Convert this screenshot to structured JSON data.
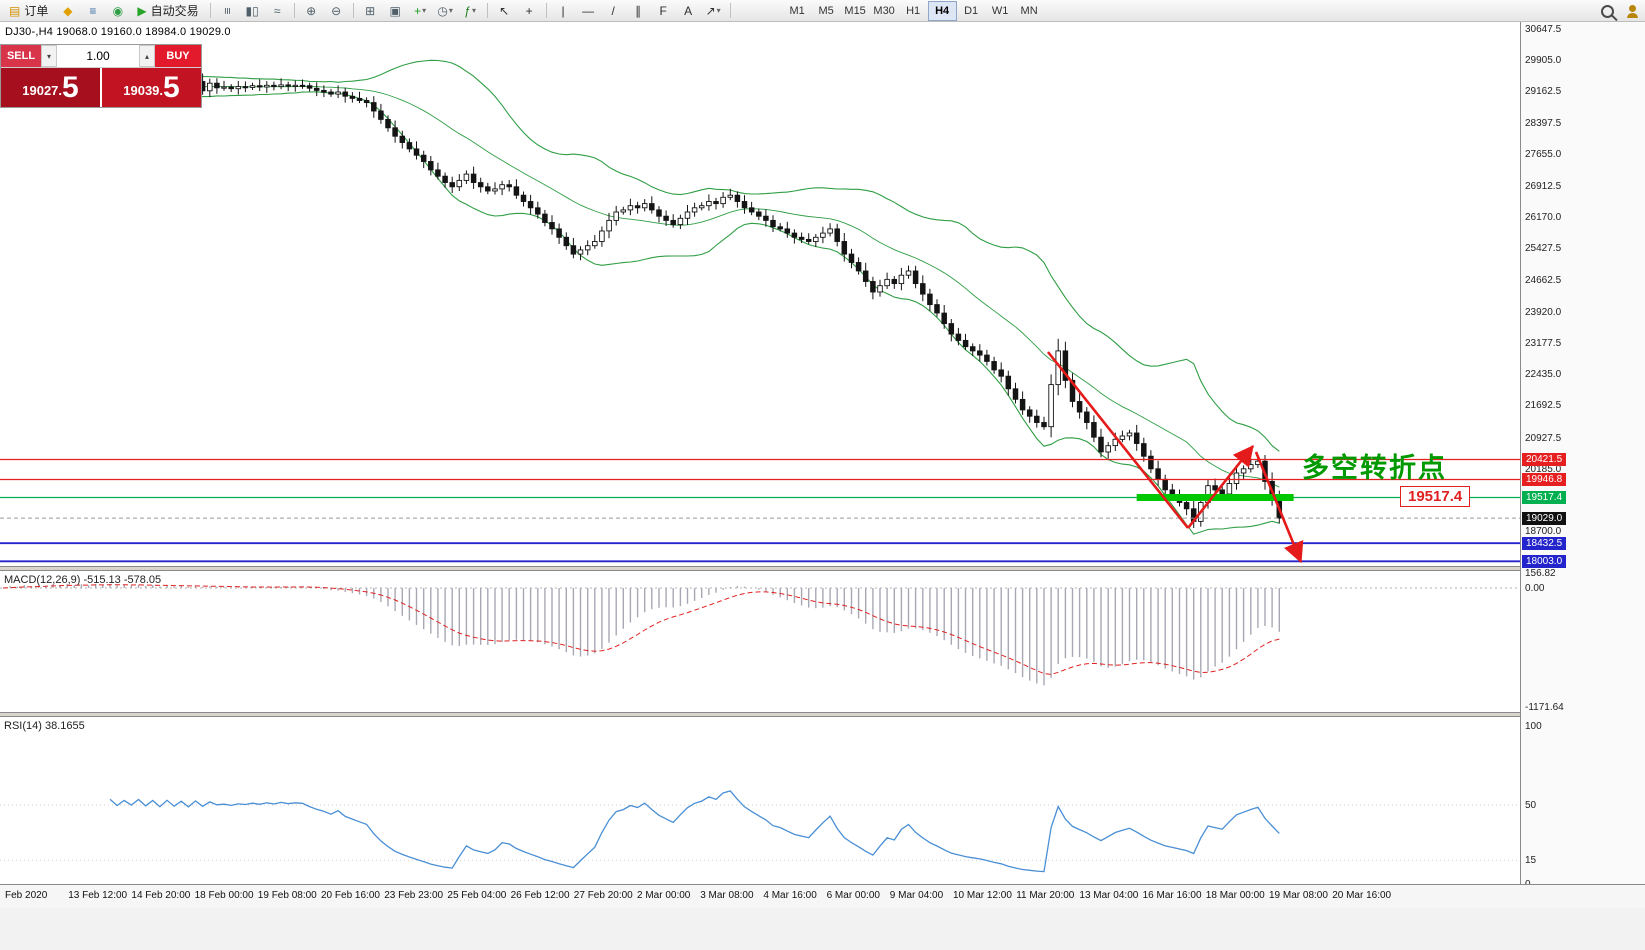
{
  "toolbar": {
    "items": [
      {
        "t": "btn",
        "name": "new-order-button",
        "glyph": "▤",
        "gc": "#d49000",
        "label": "订单"
      },
      {
        "t": "icon",
        "name": "metaeditor-icon",
        "glyph": "◆",
        "gc": "#e0a000"
      },
      {
        "t": "icon",
        "name": "market-depth-icon",
        "glyph": "≡",
        "gc": "#3a6ea5"
      },
      {
        "t": "icon",
        "name": "mql5-community-icon",
        "glyph": "◉",
        "gc": "#2e9e44"
      },
      {
        "t": "btn",
        "name": "autotrading-button",
        "glyph": "▶",
        "gc": "#28a428",
        "label": "自动交易"
      },
      {
        "t": "sep"
      },
      {
        "t": "icon",
        "name": "bar-chart-icon",
        "glyph": "≡",
        "gc": "#50606a",
        "rot": 90
      },
      {
        "t": "icon",
        "name": "candlestick-chart-icon",
        "glyph": "▮▯",
        "gc": "#50606a"
      },
      {
        "t": "icon",
        "name": "line-chart-icon",
        "glyph": "≈",
        "gc": "#50606a"
      },
      {
        "t": "sep"
      },
      {
        "t": "icon",
        "name": "zoom-in-icon",
        "glyph": "⊕",
        "gc": "#50606a"
      },
      {
        "t": "icon",
        "name": "zoom-out-icon",
        "glyph": "⊖",
        "gc": "#50606a"
      },
      {
        "t": "sep"
      },
      {
        "t": "icon",
        "name": "tile-windows-icon",
        "glyph": "⊞",
        "gc": "#50606a"
      },
      {
        "t": "icon",
        "name": "cascade-windows-icon",
        "glyph": "▣",
        "gc": "#50606a"
      },
      {
        "t": "icondrop",
        "name": "new-chart-button",
        "glyph": "+",
        "gc": "#1f9d1f"
      },
      {
        "t": "icondrop",
        "name": "profiles-button",
        "glyph": "◷",
        "gc": "#50606a"
      },
      {
        "t": "icondrop",
        "name": "indicators-button",
        "glyph": "ƒ",
        "gc": "#1f7d1f"
      },
      {
        "t": "sep"
      },
      {
        "t": "icon",
        "name": "cursor-icon",
        "glyph": "↖",
        "gc": "#303030"
      },
      {
        "t": "icon",
        "name": "crosshair-icon",
        "glyph": "+",
        "gc": "#303030"
      },
      {
        "t": "sep"
      },
      {
        "t": "icon",
        "name": "vertical-line-icon",
        "glyph": "|",
        "gc": "#303030"
      },
      {
        "t": "icon",
        "name": "horizontal-line-icon",
        "glyph": "—",
        "gc": "#303030"
      },
      {
        "t": "icon",
        "name": "trendline-icon",
        "glyph": "/",
        "gc": "#303030"
      },
      {
        "t": "icon",
        "name": "equidistant-channel-icon",
        "glyph": "∥",
        "gc": "#303030"
      },
      {
        "t": "icon",
        "name": "fibonacci-icon",
        "glyph": "F",
        "gc": "#303030"
      },
      {
        "t": "icon",
        "name": "text-tool-icon",
        "glyph": "A",
        "gc": "#303030"
      },
      {
        "t": "icondrop",
        "name": "arrows-tool-icon",
        "glyph": "↗",
        "gc": "#303030"
      },
      {
        "t": "sep"
      },
      {
        "t": "gap"
      },
      {
        "t": "tf",
        "label": "M1"
      },
      {
        "t": "tf",
        "label": "M5"
      },
      {
        "t": "tf",
        "label": "M15"
      },
      {
        "t": "tf",
        "label": "M30"
      },
      {
        "t": "tf",
        "label": "H1"
      },
      {
        "t": "tf",
        "label": "H4",
        "active": true
      },
      {
        "t": "tf",
        "label": "D1"
      },
      {
        "t": "tf",
        "label": "W1"
      },
      {
        "t": "tf",
        "label": "MN"
      }
    ],
    "right_icons": [
      {
        "name": "search-icon",
        "cls": "ic-search"
      },
      {
        "name": "community-icon",
        "cls": "ic-community"
      }
    ]
  },
  "trade_panel": {
    "sell_label": "SELL",
    "buy_label": "BUY",
    "volume": "1.00",
    "spinner_down": "▾",
    "spinner_up": "▴",
    "sell_price_small": "19027.",
    "sell_price_big": "5",
    "buy_price_small": "19039.",
    "buy_price_big": "5"
  },
  "chart": {
    "symbol_info": "DJ30-,H4  19068.0 19160.0 18984.0 19029.0",
    "annotation_cn": "多空转折点",
    "level_label": "19517.4"
  },
  "price_axis": {
    "scale": [
      "30647.5",
      "29905.0",
      "29162.5",
      "28397.5",
      "27655.0",
      "26912.5",
      "26170.0",
      "25427.5",
      "24662.5",
      "23920.0",
      "23177.5",
      "22435.0",
      "21692.5",
      "20927.5",
      "20185.0",
      "18700.0"
    ],
    "tags": [
      {
        "value": "20421.5",
        "color": "#e62020"
      },
      {
        "value": "19946.8",
        "color": "#e62020"
      },
      {
        "value": "19517.4",
        "color": "#00b050"
      },
      {
        "value": "19029.0",
        "color": "#111111"
      },
      {
        "value": "18432.5",
        "color": "#2424cc"
      },
      {
        "value": "18003.0",
        "color": "#2424cc"
      }
    ]
  },
  "chart_data": {
    "type": "candlestick",
    "symbol": "DJ30-",
    "timeframe": "H4",
    "ohlc": {
      "open": 19068.0,
      "high": 19160.0,
      "low": 18984.0,
      "close": 19029.0
    },
    "y_axis": {
      "min": 18003.0,
      "max": 30647.5
    },
    "current_price": 19029.0,
    "closes": [
      29150,
      29400,
      29120,
      29380,
      29100,
      29350,
      29150,
      29420,
      29180,
      29400,
      29130,
      29380,
      29160,
      29430,
      29200,
      29400,
      29150,
      29370,
      29180,
      29420,
      29160,
      29390,
      29140,
      29410,
      29170,
      29380,
      29150,
      29400,
      29180,
      29360,
      29250,
      29270,
      29230,
      29280,
      29260,
      29300,
      29270,
      29310,
      29280,
      29320,
      29290,
      29310,
      29300,
      29240,
      29190,
      29150,
      29100,
      29150,
      29050,
      29000,
      28950,
      28900,
      28700,
      28500,
      28300,
      28100,
      27950,
      27800,
      27650,
      27500,
      27300,
      27150,
      27000,
      26900,
      27050,
      27200,
      27000,
      26900,
      26800,
      26850,
      26950,
      26900,
      26700,
      26550,
      26400,
      26250,
      26050,
      25900,
      25700,
      25500,
      25300,
      25400,
      25500,
      25600,
      25850,
      26100,
      26300,
      26350,
      26450,
      26400,
      26500,
      26350,
      26200,
      26100,
      26000,
      26150,
      26300,
      26400,
      26450,
      26550,
      26500,
      26650,
      26700,
      26550,
      26400,
      26300,
      26200,
      26100,
      25950,
      25900,
      25800,
      25700,
      25650,
      25600,
      25700,
      25800,
      25900,
      25600,
      25300,
      25100,
      24900,
      24650,
      24400,
      24550,
      24700,
      24600,
      24800,
      24900,
      24600,
      24350,
      24100,
      23900,
      23650,
      23400,
      23250,
      23100,
      23000,
      22900,
      22750,
      22550,
      22400,
      22100,
      21850,
      21600,
      21450,
      21300,
      21200,
      22200,
      23000,
      22300,
      21800,
      21550,
      21300,
      20950,
      20600,
      20750,
      20900,
      20980,
      21050,
      20800,
      20500,
      20200,
      19950,
      19700,
      19550,
      19400,
      19250,
      18950,
      19400,
      19800,
      19700,
      19600,
      19850,
      20100,
      20200,
      20300,
      20380,
      19900,
      19500,
      19029
    ],
    "levels": [
      {
        "price": 20421.5,
        "color": "red"
      },
      {
        "price": 19946.8,
        "color": "red"
      },
      {
        "price": 19517.4,
        "color": "green"
      },
      {
        "price": 18432.5,
        "color": "blue"
      },
      {
        "price": 18003.0,
        "color": "blue"
      }
    ],
    "highlight_zone": {
      "price": 19517.4,
      "from_index": 159,
      "to_index": 181
    },
    "arrows": [
      {
        "points": [
          [
            1048,
            352
          ],
          [
            1188,
            528
          ]
        ],
        "head": false
      },
      {
        "points": [
          [
            1188,
            528
          ],
          [
            1253,
            446
          ]
        ],
        "head": true
      },
      {
        "points": [
          [
            1256,
            452
          ],
          [
            1301,
            562
          ]
        ],
        "head": true
      }
    ],
    "indicators": {
      "macd": {
        "label": "MACD(12,26,9) -515.13 -578.05",
        "params": [
          12,
          26,
          9
        ],
        "current": -515.13,
        "signal_current": -578.05,
        "axis": [
          "156.82",
          "0.00",
          "-1171.64"
        ]
      },
      "rsi": {
        "label": "RSI(14) 38.1655",
        "period": 14,
        "current": 38.1655,
        "axis": [
          "100",
          "50",
          "15",
          "0"
        ]
      }
    },
    "time_labels": [
      "Feb 2020",
      "13 Feb 12:00",
      "14 Feb 20:00",
      "18 Feb 00:00",
      "19 Feb 08:00",
      "20 Feb 16:00",
      "23 Feb 23:00",
      "25 Feb 04:00",
      "26 Feb 12:00",
      "27 Feb 20:00",
      "2 Mar 00:00",
      "3 Mar 08:00",
      "4 Mar 16:00",
      "6 Mar 00:00",
      "9 Mar 04:00",
      "10 Mar 12:00",
      "11 Mar 20:00",
      "13 Mar 04:00",
      "16 Mar 16:00",
      "18 Mar 00:00",
      "19 Mar 08:00",
      "20 Mar 16:00"
    ]
  }
}
